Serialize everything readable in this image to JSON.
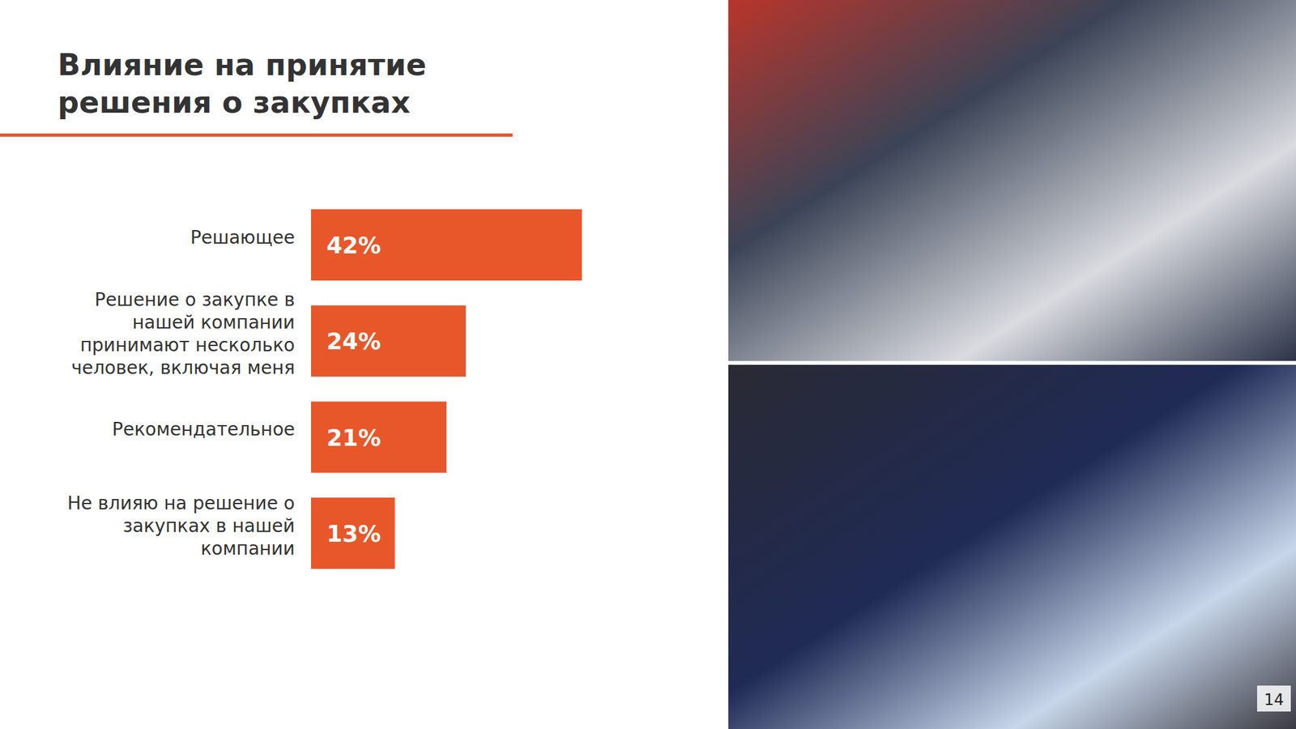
{
  "chart_data": {
    "type": "bar",
    "orientation": "horizontal",
    "title": "Влияние на принятие решения о закупках",
    "categories": [
      "Решающее",
      "Решение о закупке в нашей компании принимают несколько человек, включая меня",
      "Рекомендательное",
      "Не влияю на решение о закупках в нашей компании"
    ],
    "values": [
      42,
      24,
      21,
      13
    ],
    "value_labels": [
      "42%",
      "24%",
      "21%",
      "13%"
    ],
    "color": "#e8572a",
    "xlim": [
      0,
      42
    ],
    "data_labels": true,
    "tick_labels": false,
    "grid": false
  },
  "page_number": "14"
}
